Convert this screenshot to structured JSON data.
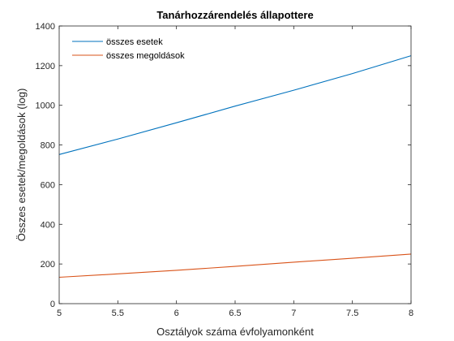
{
  "chart_data": {
    "type": "line",
    "title": "Tanárhozzárendelés állapottere",
    "xlabel": "Osztályok száma évfolyamonként",
    "ylabel": "Összes esetek/megoldások (log)",
    "xlim": [
      5,
      8
    ],
    "ylim": [
      0,
      1400
    ],
    "xticks": [
      5,
      5.5,
      6,
      6.5,
      7,
      7.5,
      8
    ],
    "xtick_labels": [
      "5",
      "5.5",
      "6",
      "6.5",
      "7",
      "7.5",
      "8"
    ],
    "yticks": [
      0,
      200,
      400,
      600,
      800,
      1000,
      1200,
      1400
    ],
    "ytick_labels": [
      "0",
      "200",
      "400",
      "600",
      "800",
      "1000",
      "1200",
      "1400"
    ],
    "grid": false,
    "legend": "top-left",
    "series": [
      {
        "name": "összes esetek",
        "color": "#0072BD",
        "x": [
          5,
          5.5,
          6,
          6.5,
          7,
          7.5,
          8
        ],
        "y": [
          752,
          830,
          912,
          996,
          1076,
          1160,
          1250
        ]
      },
      {
        "name": "összes megoldások",
        "color": "#D95319",
        "x": [
          5,
          5.5,
          6,
          6.5,
          7,
          7.5,
          8
        ],
        "y": [
          133,
          150,
          168,
          188,
          209,
          229,
          250
        ]
      }
    ]
  }
}
